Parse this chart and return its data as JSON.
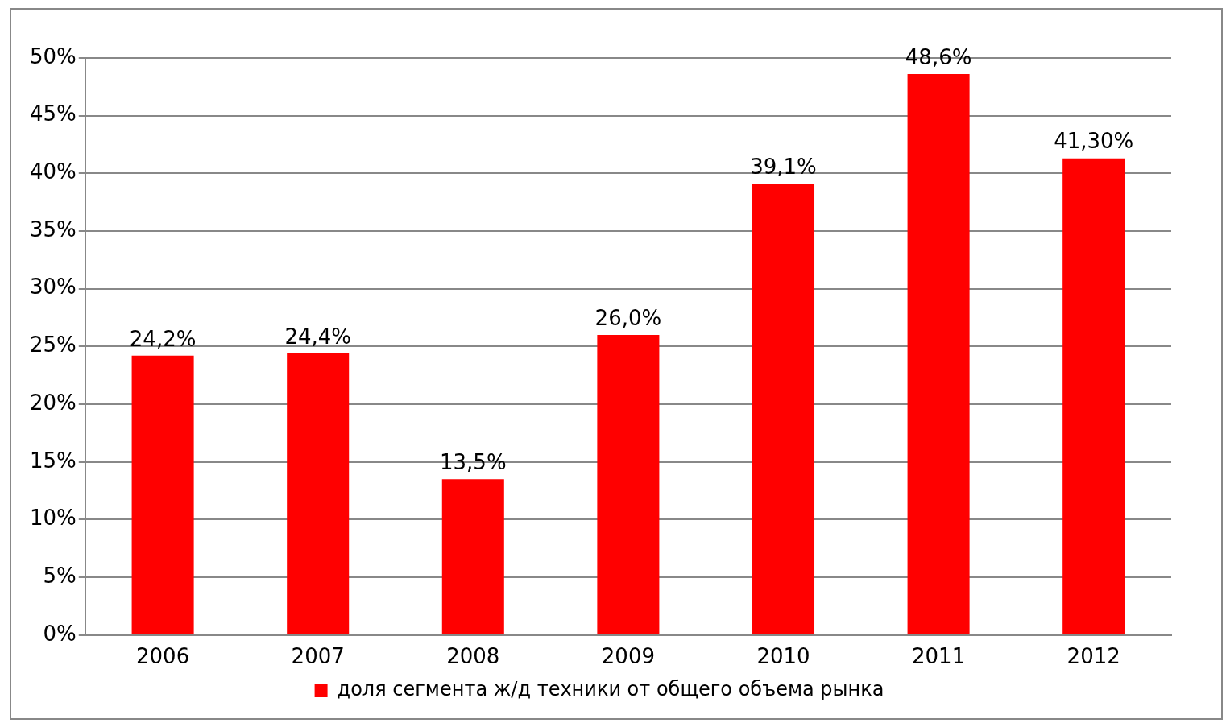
{
  "chart_data": {
    "type": "bar",
    "categories": [
      "2006",
      "2007",
      "2008",
      "2009",
      "2010",
      "2011",
      "2012"
    ],
    "series": [
      {
        "name": "доля сегмента ж/д техники от общего объема рынка",
        "color": "#ff0000",
        "values": [
          24.2,
          24.4,
          13.5,
          26.0,
          39.1,
          48.6,
          41.3
        ],
        "value_labels": [
          "24,2%",
          "24,4%",
          "13,5%",
          "26,0%",
          "39,1%",
          "48,6%",
          "41,30%"
        ]
      }
    ],
    "ylim": [
      0,
      50
    ],
    "yticks": [
      {
        "value": 0,
        "label": "0%"
      },
      {
        "value": 5,
        "label": "5%"
      },
      {
        "value": 10,
        "label": "10%"
      },
      {
        "value": 15,
        "label": "15%"
      },
      {
        "value": 20,
        "label": "20%"
      },
      {
        "value": 25,
        "label": "25%"
      },
      {
        "value": 30,
        "label": "30%"
      },
      {
        "value": 35,
        "label": "35%"
      },
      {
        "value": 40,
        "label": "40%"
      },
      {
        "value": 45,
        "label": "45%"
      },
      {
        "value": 50,
        "label": "50%"
      }
    ],
    "grid": "y",
    "legend": "bottom"
  }
}
